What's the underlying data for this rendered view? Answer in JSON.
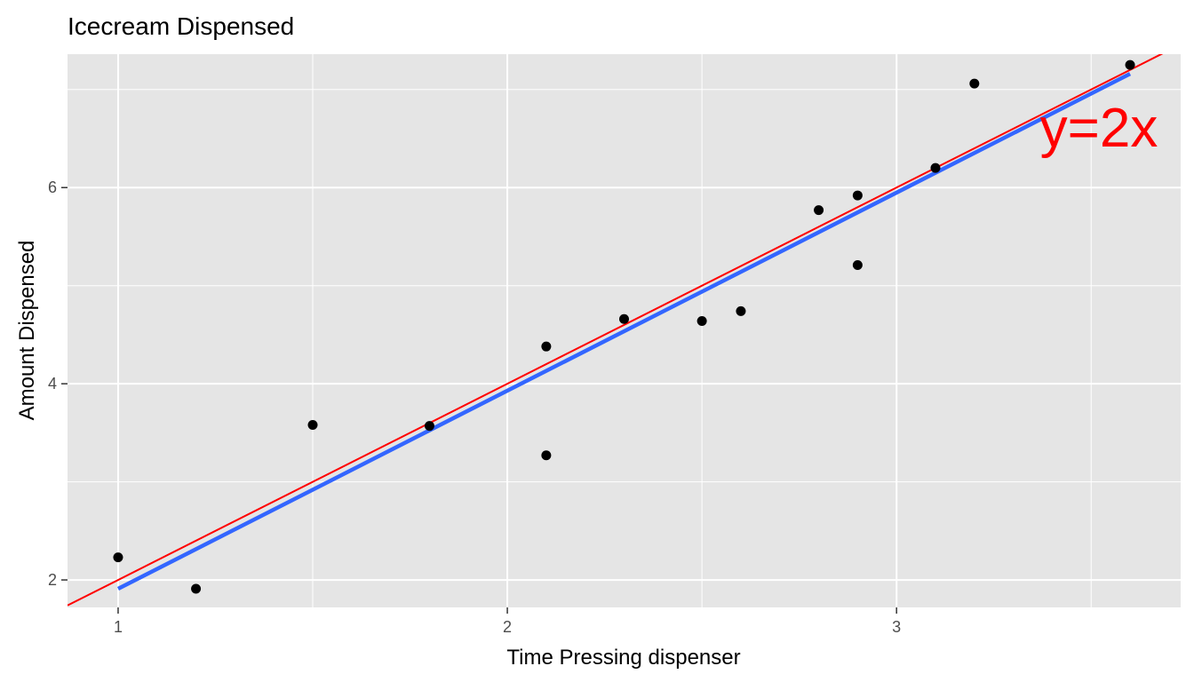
{
  "chart_data": {
    "type": "scatter",
    "title": "Icecream Dispensed",
    "xlabel": "Time Pressing dispenser",
    "ylabel": "Amount Dispensed",
    "xlim": [
      0.87,
      3.73
    ],
    "ylim": [
      1.72,
      7.36
    ],
    "x_ticks": [
      1,
      2,
      3
    ],
    "x_tick_labels": [
      "1",
      "2",
      "3"
    ],
    "y_ticks": [
      2,
      4,
      6
    ],
    "y_tick_labels": [
      "2",
      "4",
      "6"
    ],
    "grid": true,
    "legend": "none",
    "points": [
      {
        "x": 1.0,
        "y": 2.23
      },
      {
        "x": 1.2,
        "y": 1.91
      },
      {
        "x": 1.5,
        "y": 3.58
      },
      {
        "x": 1.8,
        "y": 3.57
      },
      {
        "x": 2.1,
        "y": 4.38
      },
      {
        "x": 2.1,
        "y": 3.27
      },
      {
        "x": 2.3,
        "y": 4.66
      },
      {
        "x": 2.5,
        "y": 4.64
      },
      {
        "x": 2.6,
        "y": 4.74
      },
      {
        "x": 2.8,
        "y": 5.77
      },
      {
        "x": 2.9,
        "y": 5.92
      },
      {
        "x": 2.9,
        "y": 5.21
      },
      {
        "x": 3.1,
        "y": 6.2
      },
      {
        "x": 3.2,
        "y": 7.06
      },
      {
        "x": 3.6,
        "y": 7.25
      }
    ],
    "fit_line": {
      "x": [
        1.0,
        3.6
      ],
      "y": [
        1.91,
        7.16
      ],
      "color": "#3366ff"
    },
    "reference_line": {
      "slope": 2,
      "intercept": 0,
      "color": "#ff0000"
    },
    "annotation": {
      "text": "y=2x",
      "x": 3.52,
      "y": 6.42,
      "color": "#ff0000"
    },
    "colors": {
      "panel_background": "#e5e5e5",
      "grid": "#ffffff",
      "points": "#000000",
      "tick_text": "#4d4d4d"
    }
  }
}
